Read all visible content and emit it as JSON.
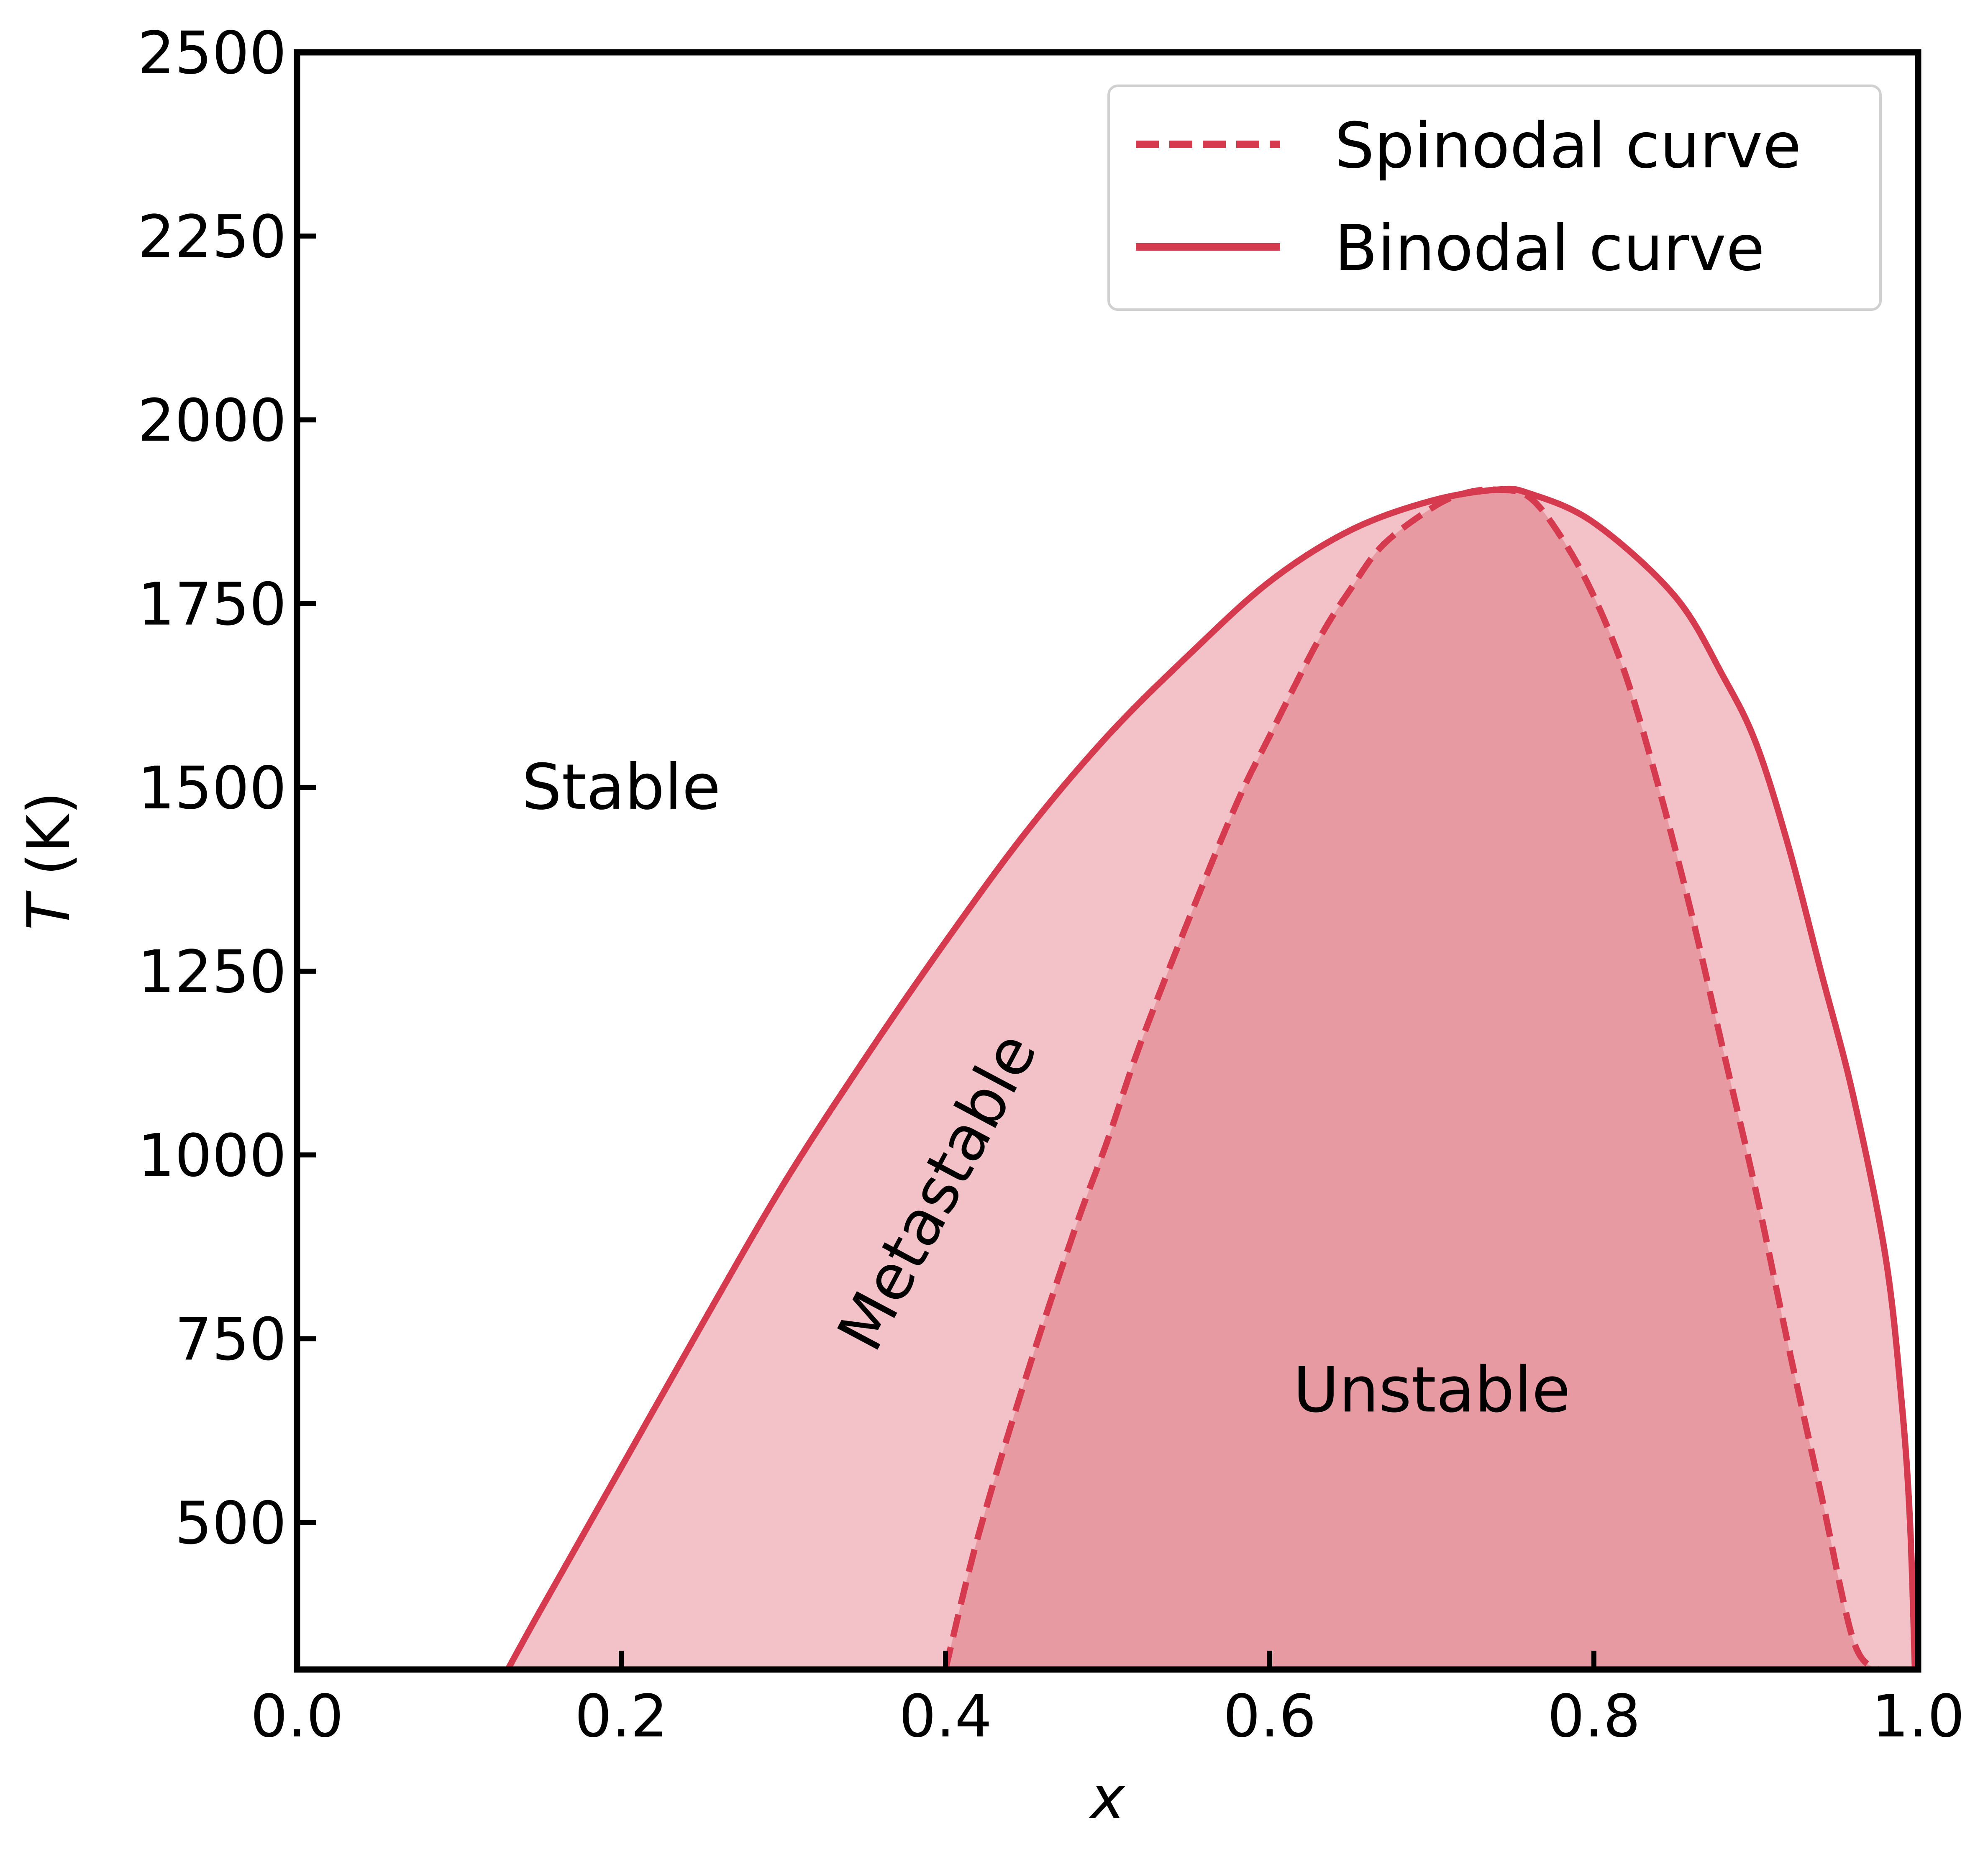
{
  "chart_data": {
    "type": "area",
    "title": "",
    "xlabel": "x",
    "ylabel_var": "T",
    "ylabel_unit": " (K)",
    "xlim": [
      0.0,
      1.0
    ],
    "ylim": [
      300,
      2500
    ],
    "xticks": [
      0.0,
      0.2,
      0.4,
      0.6,
      0.8,
      1.0
    ],
    "xtick_labels": [
      "0.0",
      "0.2",
      "0.4",
      "0.6",
      "0.8",
      "1.0"
    ],
    "yticks": [
      500,
      750,
      1000,
      1250,
      1500,
      1750,
      2000,
      2250,
      2500
    ],
    "ytick_labels": [
      "500",
      "750",
      "1000",
      "1250",
      "1500",
      "1750",
      "2000",
      "2250",
      "2500"
    ],
    "grid": false,
    "legend_position": "top-right",
    "colors": {
      "line": "#d63a4e",
      "metastable_fill": "#f2c2c8",
      "unstable_fill": "#e89aa2",
      "axes": "#000000"
    },
    "series": [
      {
        "name": "Spinodal curve",
        "style": "dashed",
        "x": [
          0.4,
          0.42,
          0.45,
          0.48,
          0.5,
          0.52,
          0.55,
          0.58,
          0.6,
          0.63,
          0.65,
          0.67,
          0.7,
          0.72,
          0.74,
          0.76,
          0.78,
          0.8,
          0.82,
          0.84,
          0.86,
          0.88,
          0.9,
          0.92,
          0.94,
          0.96,
          0.975
        ],
        "y": [
          300,
          480,
          700,
          900,
          1020,
          1150,
          1320,
          1480,
          1570,
          1700,
          1770,
          1830,
          1880,
          1900,
          1905,
          1895,
          1840,
          1760,
          1650,
          1500,
          1330,
          1140,
          950,
          740,
          540,
          340,
          300
        ]
      },
      {
        "name": "Binodal curve",
        "style": "solid",
        "x": [
          0.13,
          0.15,
          0.2,
          0.25,
          0.3,
          0.35,
          0.4,
          0.45,
          0.5,
          0.55,
          0.6,
          0.65,
          0.7,
          0.74,
          0.76,
          0.8,
          0.85,
          0.88,
          0.9,
          0.92,
          0.94,
          0.96,
          0.98,
          0.99,
          0.995,
          0.998
        ],
        "y": [
          300,
          380,
          575,
          770,
          960,
          1130,
          1290,
          1440,
          1570,
          1680,
          1780,
          1850,
          1890,
          1905,
          1900,
          1860,
          1760,
          1650,
          1560,
          1420,
          1250,
          1080,
          860,
          660,
          500,
          300
        ]
      }
    ],
    "annotations": [
      {
        "text": "Stable",
        "x": 0.2,
        "y": 1500,
        "rotation": 0
      },
      {
        "text": "Metastable",
        "x": 0.395,
        "y": 950,
        "rotation": -62
      },
      {
        "text": "Unstable",
        "x": 0.7,
        "y": 680,
        "rotation": 0
      }
    ]
  }
}
